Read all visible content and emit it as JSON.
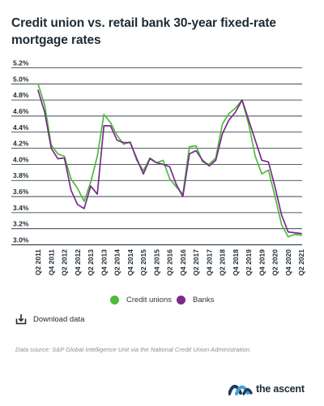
{
  "page": {
    "title": "Credit union vs. retail bank 30-year fixed-rate mortgage rates",
    "download_label": "Download data",
    "source_text": "Data source: S&P Global Intelligence Unit via the National Credit Union Administration.",
    "logo_text": "the ascent",
    "logo_icon": "the-ascent-waves-logo"
  },
  "colors": {
    "credit_unions": "#4dbb3a",
    "banks": "#7b2a8c",
    "grid": "#1f2a33",
    "logo_dark": "#1e3a5c",
    "logo_light": "#3fa2d8"
  },
  "chart_data": {
    "type": "line",
    "title": "Credit union vs. retail bank 30-year fixed-rate mortgage rates",
    "xlabel": "",
    "ylabel": "",
    "ylim": [
      3.0,
      5.2
    ],
    "yticks": [
      5.2,
      5.0,
      4.8,
      4.6,
      4.4,
      4.2,
      4.0,
      3.8,
      3.6,
      3.4,
      3.2,
      3.0
    ],
    "ytick_labels": [
      "5.2%",
      "5.0%",
      "4.8%",
      "4.6%",
      "4.4%",
      "4.2%",
      "4.0%",
      "3.8%",
      "3.6%",
      "3.4%",
      "3.2%",
      "3.0%"
    ],
    "grid": "horizontal",
    "legend_position": "bottom",
    "x": [
      "Q2 2011",
      "Q3 2011",
      "Q4 2011",
      "Q1 2012",
      "Q2 2012",
      "Q3 2012",
      "Q4 2012",
      "Q1 2013",
      "Q2 2013",
      "Q3 2013",
      "Q4 2013",
      "Q1 2014",
      "Q2 2014",
      "Q3 2014",
      "Q4 2014",
      "Q1 2015",
      "Q2 2015",
      "Q3 2015",
      "Q4 2015",
      "Q1 2016",
      "Q2 2016",
      "Q3 2016",
      "Q4 2016",
      "Q1 2017",
      "Q2 2017",
      "Q3 2017",
      "Q4 2017",
      "Q1 2018",
      "Q2 2018",
      "Q3 2018",
      "Q4 2018",
      "Q1 2019",
      "Q2 2019",
      "Q3 2019",
      "Q4 2019",
      "Q1 2020",
      "Q2 2020",
      "Q3 2020",
      "Q4 2020",
      "Q1 2021",
      "Q2 2021"
    ],
    "xtick_labels": [
      "Q2 2011",
      "Q4 2011",
      "Q2 2012",
      "Q4 2012",
      "Q2 2013",
      "Q4 2013",
      "Q2 2014",
      "Q4 2014",
      "Q2 2015",
      "Q4 2015",
      "Q2 2016",
      "Q4 2016",
      "Q2 2017",
      "Q4 2017",
      "Q2 2018",
      "Q4 2018",
      "Q2 2019",
      "Q4 2019",
      "Q2 2020",
      "Q4 2020",
      "Q2 2021"
    ],
    "series": [
      {
        "name": "Credit unions",
        "color": "#4dbb3a",
        "values": [
          5.0,
          4.74,
          4.24,
          4.13,
          4.1,
          3.82,
          3.7,
          3.54,
          3.78,
          4.1,
          4.62,
          4.52,
          4.36,
          4.25,
          4.28,
          4.05,
          3.92,
          4.08,
          4.02,
          4.05,
          3.82,
          3.72,
          3.63,
          4.22,
          4.23,
          4.03,
          4.0,
          4.08,
          4.5,
          4.63,
          4.7,
          4.8,
          4.5,
          4.1,
          3.88,
          3.93,
          3.6,
          3.25,
          3.1,
          3.13,
          3.12
        ]
      },
      {
        "name": "Banks",
        "color": "#7b2a8c",
        "values": [
          4.92,
          4.65,
          4.2,
          4.07,
          4.08,
          3.68,
          3.5,
          3.45,
          3.73,
          3.63,
          4.48,
          4.48,
          4.3,
          4.27,
          4.27,
          4.07,
          3.88,
          4.07,
          4.02,
          4.0,
          3.97,
          3.75,
          3.6,
          4.13,
          4.17,
          4.05,
          3.98,
          4.05,
          4.38,
          4.55,
          4.65,
          4.8,
          4.55,
          4.3,
          4.05,
          4.03,
          3.72,
          3.37,
          3.16,
          3.15,
          3.14
        ]
      }
    ]
  }
}
